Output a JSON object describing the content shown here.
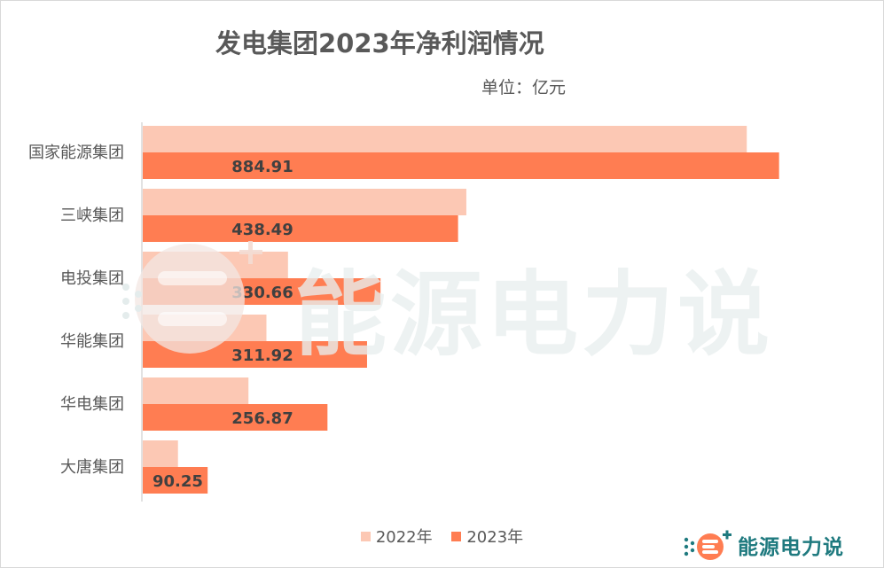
{
  "title": "发电集团2023年净利润情况",
  "unit": "单位：亿元",
  "watermark_text": "能源电力说",
  "brand_text": "能源电力说",
  "colors": {
    "series_2022": "#fcc8b4",
    "series_2023": "#ff7d52",
    "watermark": "#e9efef",
    "brand": "#1f7a7f"
  },
  "chart_data": {
    "type": "bar",
    "orientation": "horizontal",
    "categories": [
      "国家能源集团",
      "三峡集团",
      "电投集团",
      "华能集团",
      "华电集团",
      "大唐集团"
    ],
    "series": [
      {
        "name": "2022年",
        "values": [
          840,
          450,
          202,
          172,
          147,
          49
        ]
      },
      {
        "name": "2023年",
        "values": [
          884.91,
          438.49,
          330.66,
          311.92,
          256.87,
          90.25
        ]
      }
    ],
    "data_labels": [
      "884.91",
      "438.49",
      "330.66",
      "311.92",
      "256.87",
      "90.25"
    ],
    "xlim": [
      0,
      1000
    ],
    "grid": false,
    "legend": "bottom"
  }
}
